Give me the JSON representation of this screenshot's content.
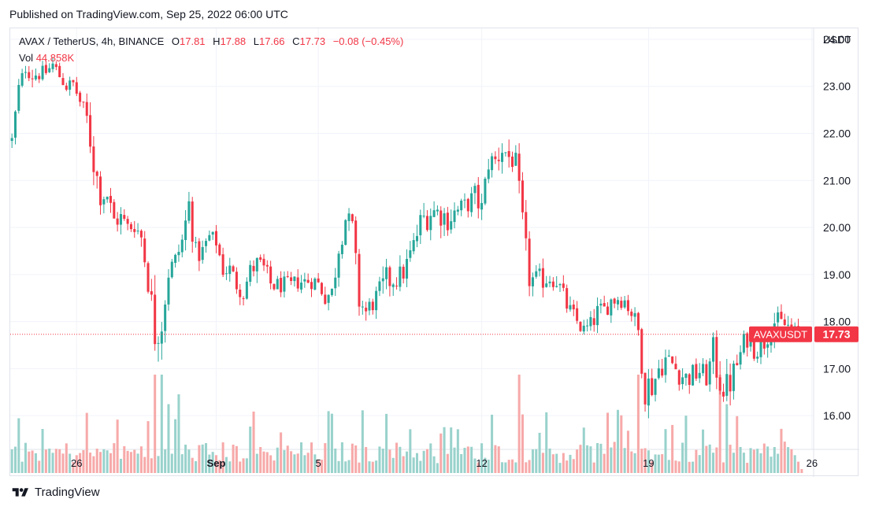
{
  "header": {
    "published": "Published on TradingView.com, Sep 25, 2022 06:00 UTC"
  },
  "legend": {
    "symbol": "AVAX / TetherUS, 4h, BINANCE",
    "open_label": "O",
    "open": "17.81",
    "high_label": "H",
    "high": "17.88",
    "low_label": "L",
    "low": "17.66",
    "close_label": "C",
    "close": "17.73",
    "change": "−0.08 (−0.45%)",
    "vol_label": "Vol",
    "vol": "44.858K"
  },
  "axis": {
    "currency": "USDT"
  },
  "price_tag": {
    "symbol": "AVAXUSDT",
    "value": "17.73"
  },
  "footer": {
    "brand": "TradingView"
  },
  "colors": {
    "up": "#26a69a",
    "down": "#f23645",
    "up_vol": "#99d2cc",
    "down_vol": "#f7a9a9",
    "grid": "#f0f3fa",
    "text": "#131722"
  },
  "chart_data": {
    "type": "candlestick",
    "title": "AVAX / TetherUS, 4h, BINANCE",
    "ylabel": "USDT",
    "ylim": [
      15.45,
      24.15
    ],
    "y_ticks": [
      "24.00",
      "23.00",
      "22.00",
      "21.00",
      "20.00",
      "19.00",
      "18.00",
      "17.00",
      "16.00"
    ],
    "x_ticks": [
      {
        "label": "26",
        "bar": 19,
        "bold": false
      },
      {
        "label": "Sep",
        "bar": 60,
        "bold": true
      },
      {
        "label": "5",
        "bar": 90,
        "bold": false
      },
      {
        "label": "12",
        "bar": 138,
        "bold": false
      },
      {
        "label": "19",
        "bar": 187,
        "bold": false
      },
      {
        "label": "26",
        "bar": 235,
        "bold": false
      }
    ],
    "last_price": 17.73,
    "anchors": [
      [
        0,
        21.85,
        0.6
      ],
      [
        2,
        22.95,
        0.7
      ],
      [
        4,
        23.4,
        0.6
      ],
      [
        6,
        23.25,
        0.8
      ],
      [
        10,
        23.3,
        0.5
      ],
      [
        12,
        23.45,
        0.7
      ],
      [
        16,
        23.0,
        0.6
      ],
      [
        18,
        23.05,
        0.6
      ],
      [
        22,
        22.3,
        0.9
      ],
      [
        24,
        21.4,
        1.3
      ],
      [
        26,
        20.7,
        1.0
      ],
      [
        28,
        20.7,
        0.9
      ],
      [
        30,
        20.15,
        0.8
      ],
      [
        32,
        20.2,
        0.9
      ],
      [
        34,
        20.0,
        0.8
      ],
      [
        36,
        20.05,
        0.7
      ],
      [
        38,
        19.8,
        0.9
      ],
      [
        40,
        18.9,
        1.2
      ],
      [
        42,
        17.8,
        1.8
      ],
      [
        44,
        18.0,
        1.4
      ],
      [
        46,
        19.05,
        1.0
      ],
      [
        48,
        19.3,
        0.8
      ],
      [
        50,
        19.7,
        1.0
      ],
      [
        52,
        20.5,
        0.9
      ],
      [
        54,
        19.4,
        1.1
      ],
      [
        56,
        19.5,
        0.7
      ],
      [
        58,
        19.8,
        0.7
      ],
      [
        60,
        19.7,
        0.7
      ],
      [
        62,
        19.1,
        0.7
      ],
      [
        64,
        19.1,
        0.8
      ],
      [
        66,
        18.8,
        0.8
      ],
      [
        68,
        18.6,
        0.7
      ],
      [
        70,
        19.1,
        0.6
      ],
      [
        72,
        19.2,
        1.0
      ],
      [
        74,
        19.1,
        1.0
      ],
      [
        76,
        18.8,
        0.7
      ],
      [
        78,
        18.75,
        0.8
      ],
      [
        80,
        18.8,
        0.6
      ],
      [
        82,
        18.75,
        0.7
      ],
      [
        84,
        18.85,
        0.7
      ],
      [
        86,
        18.85,
        0.7
      ],
      [
        88,
        18.9,
        0.8
      ],
      [
        90,
        18.8,
        0.7
      ],
      [
        92,
        18.55,
        0.8
      ],
      [
        94,
        18.6,
        1.0
      ],
      [
        96,
        19.6,
        1.0
      ],
      [
        98,
        20.2,
        1.0
      ],
      [
        100,
        20.0,
        0.8
      ],
      [
        102,
        18.45,
        1.2
      ],
      [
        104,
        18.2,
        0.9
      ],
      [
        106,
        18.4,
        0.8
      ],
      [
        108,
        18.6,
        1.0
      ],
      [
        110,
        18.85,
        1.2
      ],
      [
        112,
        18.9,
        0.9
      ],
      [
        114,
        18.95,
        1.0
      ],
      [
        116,
        19.2,
        1.1
      ],
      [
        118,
        19.6,
        1.0
      ],
      [
        120,
        20.1,
        1.0
      ],
      [
        122,
        20.3,
        1.3
      ],
      [
        124,
        20.35,
        0.9
      ],
      [
        126,
        20.3,
        1.1
      ],
      [
        128,
        20.2,
        1.1
      ],
      [
        130,
        20.3,
        1.1
      ],
      [
        132,
        20.4,
        0.9
      ],
      [
        134,
        20.5,
        0.8
      ],
      [
        136,
        20.65,
        1.1
      ],
      [
        138,
        20.4,
        0.9
      ],
      [
        140,
        21.4,
        1.0
      ],
      [
        142,
        21.4,
        1.0
      ],
      [
        144,
        21.7,
        1.2
      ],
      [
        146,
        21.5,
        1.1
      ],
      [
        148,
        21.4,
        0.7
      ],
      [
        150,
        19.9,
        2.0
      ],
      [
        152,
        18.9,
        0.9
      ],
      [
        154,
        18.85,
        1.0
      ],
      [
        156,
        18.9,
        0.9
      ],
      [
        158,
        18.95,
        0.8
      ],
      [
        160,
        18.9,
        0.9
      ],
      [
        162,
        18.5,
        0.9
      ],
      [
        164,
        18.2,
        0.8
      ],
      [
        166,
        18.0,
        0.7
      ],
      [
        168,
        17.8,
        0.7
      ],
      [
        170,
        17.9,
        0.8
      ],
      [
        172,
        18.2,
        0.8
      ],
      [
        174,
        18.25,
        0.7
      ],
      [
        176,
        18.45,
        0.8
      ],
      [
        178,
        18.5,
        0.7
      ],
      [
        180,
        18.45,
        0.7
      ],
      [
        182,
        18.2,
        0.8
      ],
      [
        184,
        17.8,
        0.9
      ],
      [
        186,
        16.7,
        1.9
      ],
      [
        188,
        16.6,
        0.9
      ],
      [
        190,
        17.0,
        1.0
      ],
      [
        192,
        17.2,
        1.0
      ],
      [
        194,
        17.1,
        0.9
      ],
      [
        196,
        16.9,
        0.9
      ],
      [
        198,
        16.8,
        0.9
      ],
      [
        200,
        16.85,
        1.0
      ],
      [
        202,
        16.95,
        1.0
      ],
      [
        204,
        16.8,
        0.8
      ],
      [
        206,
        17.3,
        1.4
      ],
      [
        208,
        16.8,
        1.6
      ],
      [
        210,
        16.55,
        1.4
      ],
      [
        212,
        16.9,
        1.1
      ],
      [
        214,
        17.3,
        1.0
      ],
      [
        216,
        17.7,
        1.0
      ],
      [
        218,
        17.5,
        1.1
      ],
      [
        220,
        17.45,
        1.0
      ],
      [
        222,
        17.75,
        1.0
      ],
      [
        224,
        18.0,
        0.9
      ],
      [
        226,
        17.95,
        0.8
      ],
      [
        228,
        17.9,
        0.8
      ],
      [
        230,
        17.75,
        0.7
      ],
      [
        232,
        17.73,
        0.6
      ]
    ],
    "volume_spikes": [
      [
        42,
        1.0
      ],
      [
        44,
        1.0
      ],
      [
        46,
        0.7
      ],
      [
        49,
        0.8
      ],
      [
        149,
        1.0
      ],
      [
        184,
        1.0
      ],
      [
        208,
        1.0
      ],
      [
        210,
        0.7
      ]
    ]
  }
}
